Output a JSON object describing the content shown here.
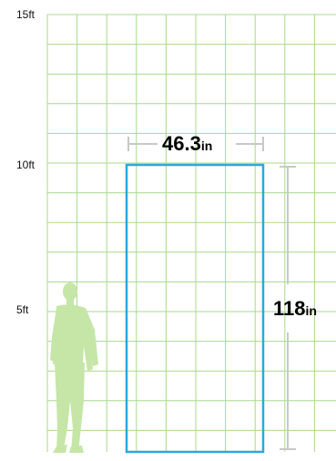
{
  "scale": {
    "unit": "ft",
    "ticks": [
      {
        "value": 15,
        "label": "15ft"
      },
      {
        "value": 10,
        "label": "10ft"
      },
      {
        "value": 5,
        "label": "5ft"
      }
    ]
  },
  "object": {
    "width": {
      "value": "46.3",
      "unit": "in"
    },
    "height": {
      "value": "118",
      "unit": "in"
    }
  },
  "colors": {
    "grid": "#a8d98c",
    "object_outline": "#2ea7dc",
    "dimension_line": "#c8c8c8",
    "silhouette": "#c6e6a8"
  },
  "icons": {
    "person": "standing-person-silhouette-icon"
  }
}
